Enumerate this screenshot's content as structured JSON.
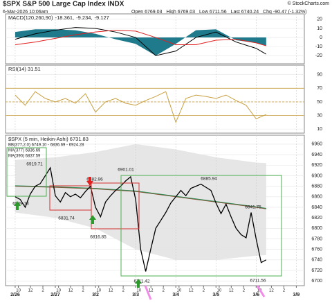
{
  "header": {
    "title": "$SPX S&P 500 Large Cap Index INDX",
    "source": "© StockCharts.com",
    "date": "6-Mar-2026 10:06am",
    "quote": [
      "Open 6769.03",
      "High 6769.03",
      "Low 6711.56",
      "Last 6740.24",
      "Chg -90.47 (-1.32%)"
    ]
  },
  "chart_data": [
    {
      "type": "line",
      "label_parts": [
        "MACD(120,260,90)",
        "-18.361,",
        "-9.234,",
        "-9.127"
      ],
      "ylim": [
        -29,
        26
      ],
      "yticks": [
        20,
        10,
        0,
        -10,
        -20
      ],
      "xlim": [
        -0.24,
        7.2
      ],
      "series": [
        {
          "type": "area",
          "color": "#1f7a8c",
          "x": [
            0,
            0.5,
            1,
            1.5,
            2,
            2.5,
            3,
            3.5,
            4,
            4.5,
            5,
            5.5,
            6,
            6.25
          ],
          "values": [
            6,
            9,
            9,
            8,
            4,
            -2,
            -7,
            -20,
            -7,
            8,
            9,
            -3,
            -6,
            -9.1
          ]
        },
        {
          "type": "line",
          "color": "#000000",
          "x": [
            0,
            0.5,
            1,
            1.5,
            2,
            2.5,
            3,
            3.5,
            4,
            4.5,
            5,
            5.5,
            6,
            6.25
          ],
          "values": [
            -2,
            4,
            8,
            11,
            10,
            6,
            0,
            -20,
            -15,
            0,
            6,
            -5,
            -12,
            -18.4
          ]
        },
        {
          "type": "line",
          "color": "#e02020",
          "x": [
            0,
            0.5,
            1,
            1.5,
            2,
            2.5,
            3,
            3.5,
            4,
            4.5,
            5,
            5.5,
            6,
            6.25
          ],
          "values": [
            -8,
            -5,
            -1,
            3,
            6,
            8,
            7,
            0,
            -8,
            -8,
            -3,
            -2,
            -6,
            -9.2
          ]
        }
      ]
    },
    {
      "type": "line",
      "label_parts": [
        "RSI(14) 31.51"
      ],
      "ylim": [
        4,
        104
      ],
      "yticks": [
        90,
        70,
        50,
        30,
        10
      ],
      "bands": [
        70,
        50,
        30
      ],
      "xlim": [
        -0.24,
        7.2
      ],
      "series": [
        {
          "type": "line",
          "color": "#c8a040",
          "x": [
            0,
            0.25,
            0.5,
            0.75,
            1,
            1.25,
            1.5,
            1.75,
            2,
            2.25,
            2.5,
            2.75,
            3,
            3.25,
            3.5,
            3.75,
            4,
            4.25,
            4.5,
            4.75,
            5,
            5.25,
            5.5,
            5.75,
            6,
            6.25
          ],
          "values": [
            60,
            45,
            65,
            55,
            50,
            55,
            48,
            62,
            35,
            50,
            55,
            48,
            45,
            52,
            58,
            65,
            20,
            55,
            60,
            58,
            55,
            60,
            52,
            45,
            25,
            31.5
          ]
        }
      ]
    },
    {
      "type": "line",
      "label_parts": [
        "$SPX (5 min, Heikin-Ashi) 6731.83",
        "BB(377,2.0) 6749.10 - 6836.69 - 6924.28",
        "MA(377) 6836.69",
        "MA(390) 6837.59"
      ],
      "ylim": [
        6691,
        6977
      ],
      "yticks": [
        6960,
        6940,
        6920,
        6900,
        6880,
        6860,
        6840,
        6820,
        6800,
        6780,
        6760,
        6740,
        6720,
        6700
      ],
      "xlim": [
        -0.24,
        7.2
      ],
      "xticks": [
        {
          "value": 0,
          "label": "2/26"
        },
        {
          "value": 0.08,
          "label": "10"
        },
        {
          "value": 0.38,
          "label": "12"
        },
        {
          "value": 0.69,
          "label": "2"
        },
        {
          "value": 1,
          "label": "2/27"
        },
        {
          "value": 1.08,
          "label": "10"
        },
        {
          "value": 1.38,
          "label": "12"
        },
        {
          "value": 1.69,
          "label": "2"
        },
        {
          "value": 2,
          "label": "3/2"
        },
        {
          "value": 2.08,
          "label": "10"
        },
        {
          "value": 2.38,
          "label": "12"
        },
        {
          "value": 2.69,
          "label": "2"
        },
        {
          "value": 3,
          "label": "3/3"
        },
        {
          "value": 3.08,
          "label": "10"
        },
        {
          "value": 3.38,
          "label": "12"
        },
        {
          "value": 3.69,
          "label": "2"
        },
        {
          "value": 4,
          "label": "3/4"
        },
        {
          "value": 4.08,
          "label": "10"
        },
        {
          "value": 4.38,
          "label": "12"
        },
        {
          "value": 4.69,
          "label": "2"
        },
        {
          "value": 5,
          "label": "3/5"
        },
        {
          "value": 5.08,
          "label": "10"
        },
        {
          "value": 5.38,
          "label": "12"
        },
        {
          "value": 5.69,
          "label": "2"
        },
        {
          "value": 6,
          "label": "3/6"
        },
        {
          "value": 6.08,
          "label": "10"
        },
        {
          "value": 6.38,
          "label": "12"
        },
        {
          "value": 6.69,
          "label": "2"
        },
        {
          "value": 7,
          "label": "3/9"
        }
      ],
      "band": {
        "color": "#e6e6e6",
        "x": [
          0,
          1,
          2,
          3,
          4,
          5,
          6,
          6.25
        ],
        "upper": [
          6930,
          6935,
          6945,
          6960,
          6950,
          6935,
          6925,
          6924
        ],
        "lower": [
          6830,
          6820,
          6800,
          6760,
          6740,
          6740,
          6748,
          6749
        ]
      },
      "series": [
        {
          "type": "line",
          "color": "#8b4a2b",
          "x": [
            0,
            1,
            2,
            3,
            4,
            5,
            6,
            6.25
          ],
          "values": [
            6880,
            6878,
            6875,
            6870,
            6860,
            6850,
            6840,
            6837
          ]
        },
        {
          "type": "line",
          "color": "#2e8b57",
          "x": [
            0,
            1,
            2,
            3,
            4,
            5,
            6,
            6.25
          ],
          "values": [
            6881,
            6879,
            6876,
            6871,
            6861,
            6851,
            6841,
            6838
          ]
        },
        {
          "type": "line",
          "color": "#000000",
          "x": [
            0,
            0.125,
            0.25,
            0.375,
            0.5,
            0.625,
            0.75,
            0.875,
            1,
            1.125,
            1.25,
            1.375,
            1.5,
            1.625,
            1.75,
            1.875,
            2,
            2.125,
            2.25,
            2.375,
            2.5,
            2.625,
            2.75,
            2.875,
            3,
            3.125,
            3.25,
            3.375,
            3.5,
            3.625,
            3.75,
            3.875,
            4,
            4.125,
            4.25,
            4.375,
            4.5,
            4.625,
            4.75,
            4.875,
            5,
            5.125,
            5.25,
            5.375,
            5.5,
            5.625,
            5.75,
            5.875,
            6,
            6.125,
            6.25
          ],
          "values": [
            6860,
            6855,
            6840,
            6865,
            6880,
            6885,
            6900,
            6915,
            6862,
            6850,
            6868,
            6860,
            6865,
            6858,
            6870,
            6880,
            6840,
            6822,
            6850,
            6862,
            6872,
            6880,
            6890,
            6898,
            6855,
            6760,
            6718,
            6760,
            6800,
            6815,
            6830,
            6848,
            6860,
            6872,
            6862,
            6876,
            6880,
            6884,
            6878,
            6872,
            6848,
            6828,
            6846,
            6822,
            6800,
            6788,
            6782,
            6830,
            6780,
            6735,
            6740
          ]
        }
      ],
      "annotations": [
        "6919.71",
        "6882.96",
        "6901.01",
        "6885.94",
        "6841.75",
        "6839.73",
        "6831.74",
        "6816.85",
        "6711.42",
        "6711.56"
      ]
    }
  ]
}
